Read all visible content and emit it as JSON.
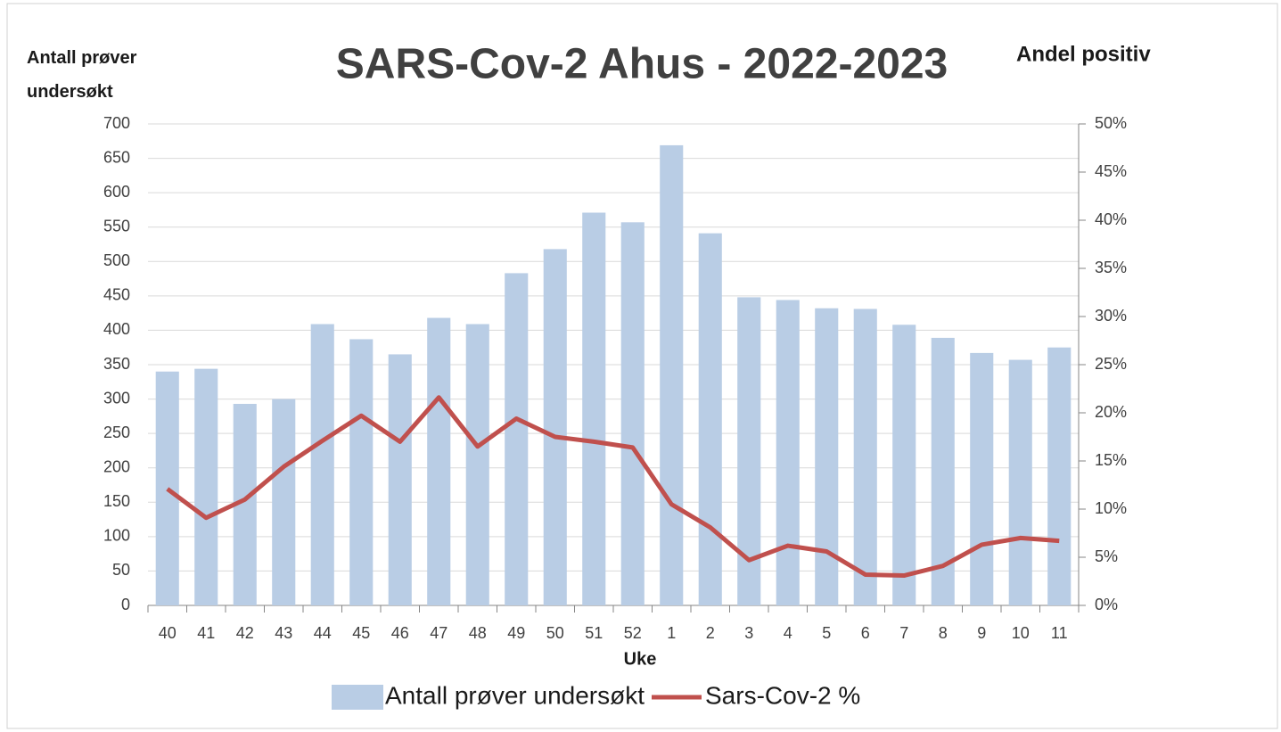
{
  "chart_data": {
    "type": "bar-line",
    "title": "SARS-Cov-2 Ahus - 2022-2023",
    "y_label": "Antall prøver undersøkt",
    "y2_label": "Andel positiv",
    "x_label": "Uke",
    "categories": [
      "40",
      "41",
      "42",
      "43",
      "44",
      "45",
      "46",
      "47",
      "48",
      "49",
      "50",
      "51",
      "52",
      "1",
      "2",
      "3",
      "4",
      "5",
      "6",
      "7",
      "8",
      "9",
      "10",
      "11"
    ],
    "series": [
      {
        "name": "Antall prøver undersøkt",
        "type": "bar",
        "color": "#b9cde5",
        "values": [
          340,
          344,
          293,
          300,
          409,
          387,
          365,
          418,
          409,
          483,
          518,
          571,
          557,
          669,
          541,
          448,
          444,
          432,
          431,
          408,
          389,
          367,
          357,
          375
        ]
      },
      {
        "name": "Sars-Cov-2 %",
        "type": "line",
        "axis": "y2",
        "color": "#c0504d",
        "values": [
          12.1,
          9.1,
          11.0,
          14.4,
          17.1,
          19.7,
          17.0,
          21.6,
          16.5,
          19.4,
          17.5,
          17.0,
          16.4,
          10.5,
          8.1,
          4.7,
          6.2,
          5.6,
          3.2,
          3.1,
          4.1,
          6.3,
          7.0,
          6.7
        ]
      }
    ],
    "ylim": [
      0,
      700
    ],
    "yticks": [
      0,
      50,
      100,
      150,
      200,
      250,
      300,
      350,
      400,
      450,
      500,
      550,
      600,
      650,
      700
    ],
    "y2lim": [
      0,
      50
    ],
    "y2ticks": [
      {
        "value": 0,
        "label": "0%"
      },
      {
        "value": 5,
        "label": "5%"
      },
      {
        "value": 10,
        "label": "10%"
      },
      {
        "value": 15,
        "label": "15%"
      },
      {
        "value": 20,
        "label": "20%"
      },
      {
        "value": 25,
        "label": "25%"
      },
      {
        "value": 30,
        "label": "30%"
      },
      {
        "value": 35,
        "label": "35%"
      },
      {
        "value": 40,
        "label": "40%"
      },
      {
        "value": 45,
        "label": "45%"
      },
      {
        "value": 50,
        "label": "50%"
      }
    ],
    "grid": true,
    "legend": "bottom"
  }
}
